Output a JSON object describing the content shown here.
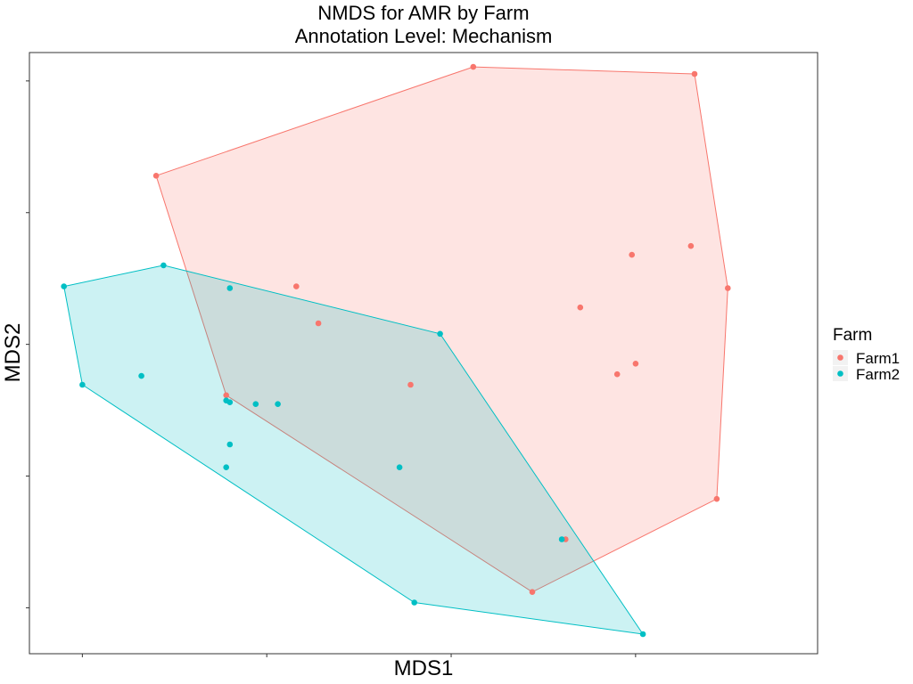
{
  "chart_data": {
    "type": "scatter",
    "title": "NMDS for AMR by Farm",
    "subtitle": "Annotation Level: Mechanism",
    "xlabel": "MDS1",
    "ylabel": "MDS2",
    "xlim": [
      -0.6,
      1.45
    ],
    "ylim": [
      -1.65,
      1.55
    ],
    "x_ticks": [
      -0.5,
      0.0,
      0.5,
      1.0
    ],
    "y_ticks": [
      -1.5,
      -0.75,
      0.0,
      0.75,
      1.5
    ],
    "tick_labels_visible": false,
    "grid": false,
    "legend": {
      "title": "Farm",
      "position": "right"
    },
    "hulls": true,
    "series": [
      {
        "name": "Farm1",
        "color": "#F8766D",
        "points": [
          [
            -0.3,
            0.96
          ],
          [
            0.56,
            1.58
          ],
          [
            1.16,
            1.54
          ],
          [
            1.25,
            0.32
          ],
          [
            1.22,
            -0.88
          ],
          [
            0.72,
            -1.41
          ],
          [
            -0.11,
            -0.29
          ],
          [
            0.08,
            0.33
          ],
          [
            0.14,
            0.12
          ],
          [
            0.99,
            0.51
          ],
          [
            1.15,
            0.56
          ],
          [
            0.85,
            0.21
          ],
          [
            0.39,
            -0.23
          ],
          [
            0.95,
            -0.17
          ],
          [
            1.0,
            -0.11
          ],
          [
            0.81,
            -1.11
          ]
        ]
      },
      {
        "name": "Farm2",
        "color": "#00BFC4",
        "points": [
          [
            -0.55,
            0.33
          ],
          [
            -0.28,
            0.45
          ],
          [
            0.47,
            0.06
          ],
          [
            1.02,
            -1.65
          ],
          [
            0.4,
            -1.47
          ],
          [
            -0.5,
            -0.23
          ],
          [
            -0.34,
            -0.18
          ],
          [
            -0.1,
            0.32
          ],
          [
            -0.11,
            -0.32
          ],
          [
            -0.1,
            -0.33
          ],
          [
            -0.03,
            -0.34
          ],
          [
            0.03,
            -0.34
          ],
          [
            -0.1,
            -0.57
          ],
          [
            -0.11,
            -0.7
          ],
          [
            0.36,
            -0.7
          ],
          [
            0.8,
            -1.11
          ]
        ]
      }
    ]
  }
}
